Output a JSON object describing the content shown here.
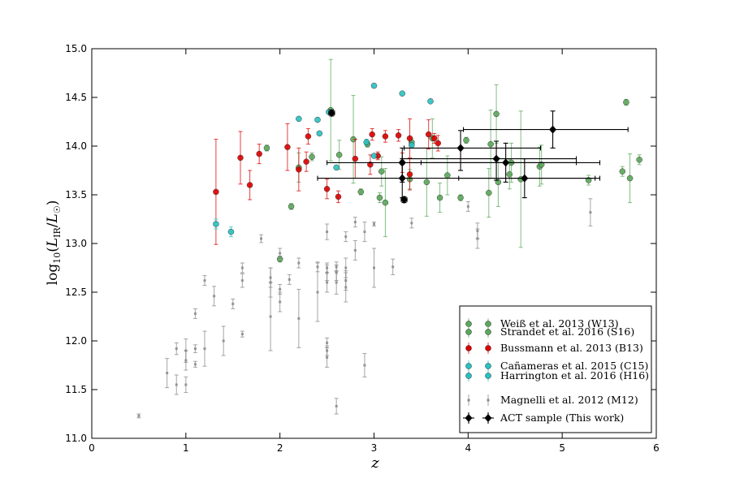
{
  "chart_data": {
    "type": "scatter",
    "title": "",
    "xlabel": "z",
    "ylabel_parts": {
      "prefix": "log",
      "prefix_sub": "10",
      "open": "(",
      "L": "L",
      "L_sub": "IR",
      "slash": "/",
      "Lsun": "L",
      "Lsun_sub": "☉",
      "close": ")"
    },
    "xlim": [
      0,
      6
    ],
    "ylim": [
      11.0,
      15.0
    ],
    "x_ticks": [
      0,
      1,
      2,
      3,
      4,
      5,
      6
    ],
    "y_ticks": [
      11.0,
      11.5,
      12.0,
      12.5,
      13.0,
      13.5,
      14.0,
      14.5,
      15.0
    ],
    "x_tick_labels": [
      "0",
      "1",
      "2",
      "3",
      "4",
      "5",
      "6"
    ],
    "y_tick_labels": [
      "11.0",
      "11.5",
      "12.0",
      "12.5",
      "13.0",
      "13.5",
      "14.0",
      "14.5",
      "15.0"
    ],
    "grid": false,
    "legend_position": "lower-right",
    "legend": [
      {
        "label": "Weiß et al. 2013 (W13)",
        "color": "#5aa85a",
        "marker": "o"
      },
      {
        "label": "Strandet et al. 2016 (S16)",
        "color": "#5aa85a",
        "marker": "o"
      },
      {
        "label": "Bussmann et al. 2013 (B13)",
        "color": "#dd0000",
        "marker": "o"
      },
      {
        "label": "Cañameras et al. 2015 (C15)",
        "color": "#27c1c1",
        "marker": "o"
      },
      {
        "label": "Harrington et al. 2016 (H16)",
        "color": "#27c1c1",
        "marker": "o"
      },
      {
        "label": "Magnelli et al. 2012 (M12)",
        "color": "#888888",
        "marker": "s"
      },
      {
        "label": "ACT sample (This work)",
        "color": "#000000",
        "marker": "D"
      }
    ],
    "series": [
      {
        "name": "Weiß et al. 2013 (W13) / Strandet et al. 2016 (S16)",
        "color": "#5aa85a",
        "marker": "o",
        "points": [
          {
            "x": 1.86,
            "y": 13.98,
            "e": 0.03
          },
          {
            "x": 2.0,
            "y": 12.84,
            "e": 0.03
          },
          {
            "x": 2.12,
            "y": 13.38,
            "e": 0.03
          },
          {
            "x": 2.2,
            "y": 13.78,
            "e": 0.15
          },
          {
            "x": 2.34,
            "y": 13.89,
            "e": 0.04
          },
          {
            "x": 2.54,
            "y": 14.37,
            "e": 0.52
          },
          {
            "x": 2.63,
            "y": 13.91,
            "e": 0.15
          },
          {
            "x": 2.78,
            "y": 14.07,
            "e": 0.45
          },
          {
            "x": 2.86,
            "y": 13.53,
            "e": 0.03
          },
          {
            "x": 2.93,
            "y": 14.02,
            "e": 0.03
          },
          {
            "x": 3.06,
            "y": 13.47,
            "e": 0.05
          },
          {
            "x": 3.08,
            "y": 13.74,
            "e": 0.15
          },
          {
            "x": 3.12,
            "y": 13.42,
            "e": 0.35
          },
          {
            "x": 3.38,
            "y": 13.66,
            "e": 0.1
          },
          {
            "x": 3.4,
            "y": 14.04,
            "e": 0.04
          },
          {
            "x": 3.56,
            "y": 13.63,
            "e": 0.35
          },
          {
            "x": 3.62,
            "y": 14.08,
            "e": 0.2
          },
          {
            "x": 3.7,
            "y": 13.47,
            "e": 0.15
          },
          {
            "x": 3.78,
            "y": 13.7,
            "e": 0.2
          },
          {
            "x": 3.92,
            "y": 13.47,
            "e": 0.03
          },
          {
            "x": 3.98,
            "y": 14.06,
            "e": 0.03
          },
          {
            "x": 4.22,
            "y": 13.52,
            "e": 0.25
          },
          {
            "x": 4.24,
            "y": 14.02,
            "e": 0.35
          },
          {
            "x": 4.3,
            "y": 14.33,
            "e": 0.3
          },
          {
            "x": 4.32,
            "y": 13.63,
            "e": 0.25
          },
          {
            "x": 4.44,
            "y": 13.71,
            "e": 0.15
          },
          {
            "x": 4.46,
            "y": 13.83,
            "e": 0.2
          },
          {
            "x": 4.56,
            "y": 13.66,
            "e": 0.7
          },
          {
            "x": 4.76,
            "y": 13.79,
            "e": 0.2
          },
          {
            "x": 4.78,
            "y": 13.81,
            "e": 0.2
          },
          {
            "x": 5.28,
            "y": 13.65,
            "e": 0.05
          },
          {
            "x": 5.64,
            "y": 13.74,
            "e": 0.05
          },
          {
            "x": 5.68,
            "y": 14.45,
            "e": 0.03
          },
          {
            "x": 5.72,
            "y": 13.67,
            "e": 0.25
          },
          {
            "x": 5.82,
            "y": 13.86,
            "e": 0.05
          }
        ]
      },
      {
        "name": "Bussmann et al. 2013 (B13)",
        "color": "#dd0000",
        "marker": "o",
        "points": [
          {
            "x": 1.32,
            "y": 13.53,
            "e": 0.54
          },
          {
            "x": 1.58,
            "y": 13.88,
            "e": 0.27
          },
          {
            "x": 1.68,
            "y": 13.6,
            "e": 0.15
          },
          {
            "x": 1.78,
            "y": 13.92,
            "e": 0.1
          },
          {
            "x": 2.08,
            "y": 13.99,
            "e": 0.24
          },
          {
            "x": 2.2,
            "y": 13.76,
            "e": 0.22
          },
          {
            "x": 2.28,
            "y": 13.84,
            "e": 0.1
          },
          {
            "x": 2.3,
            "y": 14.1,
            "e": 0.08
          },
          {
            "x": 2.5,
            "y": 13.56,
            "e": 0.1
          },
          {
            "x": 2.62,
            "y": 13.48,
            "e": 0.06
          },
          {
            "x": 2.8,
            "y": 13.87,
            "e": 0.2
          },
          {
            "x": 2.96,
            "y": 13.81,
            "e": 0.1
          },
          {
            "x": 2.98,
            "y": 14.12,
            "e": 0.06
          },
          {
            "x": 3.04,
            "y": 13.9,
            "e": 0.04
          },
          {
            "x": 3.12,
            "y": 14.1,
            "e": 0.06
          },
          {
            "x": 3.26,
            "y": 14.11,
            "e": 0.06
          },
          {
            "x": 3.3,
            "y": 13.83,
            "e": 0.1
          },
          {
            "x": 3.38,
            "y": 14.08,
            "e": 0.2
          },
          {
            "x": 3.38,
            "y": 13.71,
            "e": 0.16
          },
          {
            "x": 3.58,
            "y": 14.12,
            "e": 0.15
          },
          {
            "x": 3.64,
            "y": 14.08,
            "e": 0.05
          },
          {
            "x": 3.68,
            "y": 14.03,
            "e": 0.08
          }
        ]
      },
      {
        "name": "Cañameras et al. 2015 (C15) / Harrington et al. 2016 (H16)",
        "color": "#27c1c1",
        "marker": "o",
        "points": [
          {
            "x": 1.32,
            "y": 13.2,
            "e": 0.05
          },
          {
            "x": 1.48,
            "y": 13.12,
            "e": 0.05
          },
          {
            "x": 2.2,
            "y": 14.28,
            "e": 0.0
          },
          {
            "x": 2.4,
            "y": 14.27,
            "e": 0.0
          },
          {
            "x": 2.42,
            "y": 14.13,
            "e": 0.0
          },
          {
            "x": 2.52,
            "y": 14.35,
            "e": 0.0
          },
          {
            "x": 2.6,
            "y": 13.78,
            "e": 0.0
          },
          {
            "x": 2.92,
            "y": 14.04,
            "e": 0.03
          },
          {
            "x": 3.0,
            "y": 14.62,
            "e": 0.0
          },
          {
            "x": 3.0,
            "y": 13.9,
            "e": 0.0
          },
          {
            "x": 3.3,
            "y": 14.54,
            "e": 0.0
          },
          {
            "x": 3.4,
            "y": 14.01,
            "e": 0.03
          },
          {
            "x": 3.6,
            "y": 14.46,
            "e": 0.0
          }
        ]
      },
      {
        "name": "Magnelli et al. 2012 (M12)",
        "color": "#888888",
        "marker": "s",
        "points": [
          {
            "x": 0.5,
            "y": 11.23,
            "e": 0.02
          },
          {
            "x": 0.8,
            "y": 11.67,
            "e": 0.15
          },
          {
            "x": 0.9,
            "y": 11.55,
            "e": 0.1
          },
          {
            "x": 0.9,
            "y": 11.92,
            "e": 0.06
          },
          {
            "x": 1.0,
            "y": 11.9,
            "e": 0.12
          },
          {
            "x": 1.0,
            "y": 11.8,
            "e": 0.1
          },
          {
            "x": 1.0,
            "y": 11.55,
            "e": 0.08
          },
          {
            "x": 1.1,
            "y": 11.92,
            "e": 0.04
          },
          {
            "x": 1.1,
            "y": 11.76,
            "e": 0.03
          },
          {
            "x": 1.1,
            "y": 12.28,
            "e": 0.05
          },
          {
            "x": 1.2,
            "y": 11.92,
            "e": 0.18
          },
          {
            "x": 1.2,
            "y": 12.62,
            "e": 0.05
          },
          {
            "x": 1.3,
            "y": 12.46,
            "e": 0.1
          },
          {
            "x": 1.4,
            "y": 12.0,
            "e": 0.15
          },
          {
            "x": 1.5,
            "y": 12.38,
            "e": 0.05
          },
          {
            "x": 1.6,
            "y": 12.07,
            "e": 0.03
          },
          {
            "x": 1.6,
            "y": 12.62,
            "e": 0.07
          },
          {
            "x": 1.6,
            "y": 12.75,
            "e": 0.05
          },
          {
            "x": 1.8,
            "y": 13.05,
            "e": 0.04
          },
          {
            "x": 1.9,
            "y": 12.25,
            "e": 0.35
          },
          {
            "x": 1.9,
            "y": 12.65,
            "e": 0.1
          },
          {
            "x": 1.9,
            "y": 12.6,
            "e": 0.15
          },
          {
            "x": 2.0,
            "y": 12.53,
            "e": 0.05
          },
          {
            "x": 2.0,
            "y": 12.4,
            "e": 0.1
          },
          {
            "x": 2.0,
            "y": 12.9,
            "e": 0.05
          },
          {
            "x": 2.1,
            "y": 12.63,
            "e": 0.05
          },
          {
            "x": 2.2,
            "y": 12.8,
            "e": 0.05
          },
          {
            "x": 2.2,
            "y": 12.23,
            "e": 0.3
          },
          {
            "x": 2.4,
            "y": 12.76,
            "e": 0.05
          },
          {
            "x": 2.4,
            "y": 12.5,
            "e": 0.3
          },
          {
            "x": 2.5,
            "y": 12.75,
            "e": 0.05
          },
          {
            "x": 2.5,
            "y": 12.7,
            "e": 0.08
          },
          {
            "x": 2.5,
            "y": 12.6,
            "e": 0.1
          },
          {
            "x": 2.5,
            "y": 13.12,
            "e": 0.08
          },
          {
            "x": 2.5,
            "y": 11.98,
            "e": 0.05
          },
          {
            "x": 2.5,
            "y": 11.9,
            "e": 0.05
          },
          {
            "x": 2.5,
            "y": 11.83,
            "e": 0.1
          },
          {
            "x": 2.6,
            "y": 12.76,
            "e": 0.05
          },
          {
            "x": 2.6,
            "y": 12.7,
            "e": 0.08
          },
          {
            "x": 2.6,
            "y": 12.6,
            "e": 0.12
          },
          {
            "x": 2.6,
            "y": 11.33,
            "e": 0.08
          },
          {
            "x": 2.7,
            "y": 12.75,
            "e": 0.1
          },
          {
            "x": 2.7,
            "y": 12.55,
            "e": 0.15
          },
          {
            "x": 2.7,
            "y": 12.62,
            "e": 0.1
          },
          {
            "x": 2.7,
            "y": 13.07,
            "e": 0.05
          },
          {
            "x": 2.8,
            "y": 12.93,
            "e": 0.1
          },
          {
            "x": 2.8,
            "y": 13.22,
            "e": 0.05
          },
          {
            "x": 2.9,
            "y": 13.12,
            "e": 0.1
          },
          {
            "x": 2.9,
            "y": 11.75,
            "e": 0.12
          },
          {
            "x": 3.0,
            "y": 12.75,
            "e": 0.2
          },
          {
            "x": 3.0,
            "y": 13.2,
            "e": 0.02
          },
          {
            "x": 3.2,
            "y": 12.76,
            "e": 0.08
          },
          {
            "x": 3.4,
            "y": 13.21,
            "e": 0.05
          },
          {
            "x": 4.0,
            "y": 13.38,
            "e": 0.05
          },
          {
            "x": 4.1,
            "y": 13.13,
            "e": 0.08
          },
          {
            "x": 4.1,
            "y": 13.05,
            "e": 0.1
          },
          {
            "x": 5.3,
            "y": 13.32,
            "e": 0.14
          }
        ]
      },
      {
        "name": "ACT sample (This work)",
        "color": "#000000",
        "marker": "D",
        "points": [
          {
            "x": 2.55,
            "y": 14.34,
            "xerr": [
              0.03,
              0.03
            ],
            "yerr": [
              0.03,
              0.03
            ]
          },
          {
            "x": 3.3,
            "y": 13.67,
            "xerr": [
              0.9,
              2.05
            ],
            "yerr": [
              0.2,
              0.2
            ]
          },
          {
            "x": 3.32,
            "y": 13.45,
            "xerr": [
              0.03,
              0.03
            ],
            "yerr": [
              0.03,
              0.03
            ]
          },
          {
            "x": 3.3,
            "y": 13.83,
            "xerr": [
              0.8,
              1.85
            ],
            "yerr": [
              0.2,
              0.15
            ]
          },
          {
            "x": 3.92,
            "y": 13.98,
            "xerr": [
              0.6,
              0.85
            ],
            "yerr": [
              0.23,
              0.18
            ]
          },
          {
            "x": 4.3,
            "y": 13.87,
            "xerr": [
              1.0,
              0.85
            ],
            "yerr": [
              0.22,
              0.18
            ]
          },
          {
            "x": 4.4,
            "y": 13.83,
            "xerr": [
              0.9,
              1.0
            ],
            "yerr": [
              0.2,
              0.2
            ]
          },
          {
            "x": 4.6,
            "y": 13.67,
            "xerr": [
              0.7,
              0.8
            ],
            "yerr": [
              0.2,
              0.2
            ]
          },
          {
            "x": 4.9,
            "y": 14.17,
            "xerr": [
              0.95,
              0.8
            ],
            "yerr": [
              0.19,
              0.19
            ]
          }
        ]
      }
    ]
  }
}
